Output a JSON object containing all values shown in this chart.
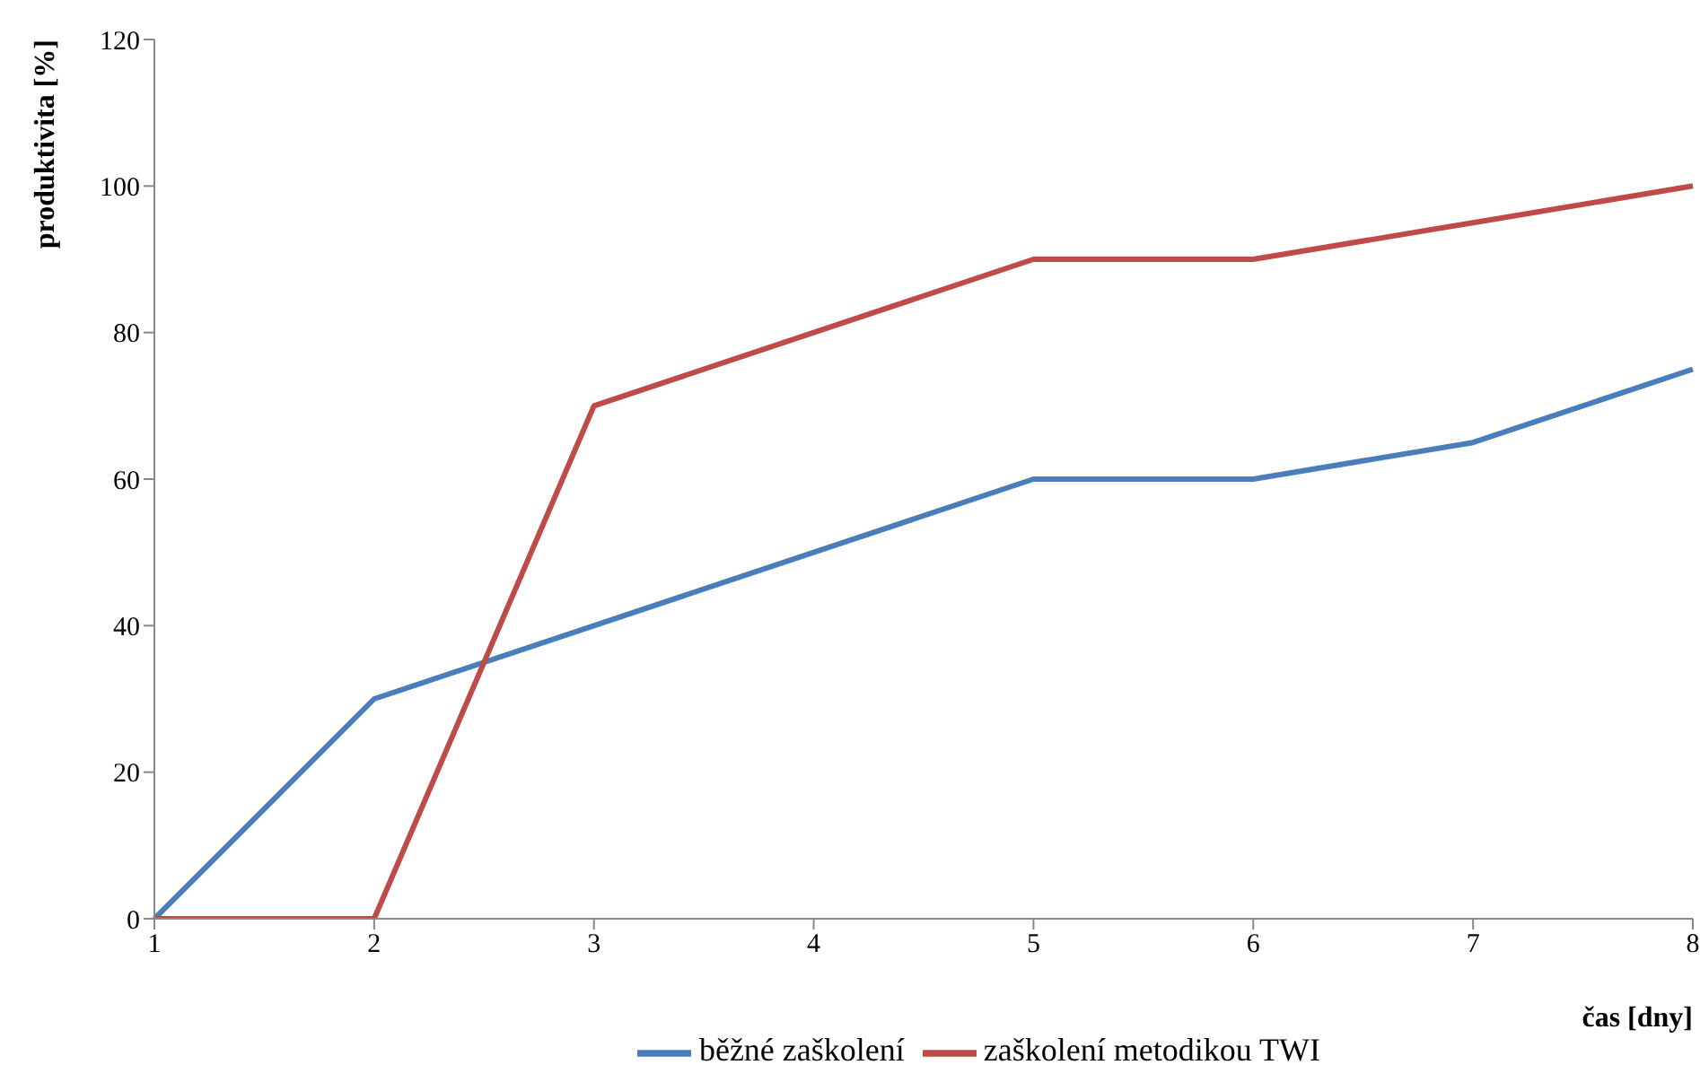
{
  "chart_data": {
    "type": "line",
    "xlabel": "čas [dny]",
    "ylabel": "produktivita [%]",
    "categories": [
      "1",
      "2",
      "3",
      "4",
      "5",
      "6",
      "7",
      "8"
    ],
    "series": [
      {
        "name": "běžné zaškolení",
        "color": "#4a7ebb",
        "values": [
          0,
          30,
          40,
          50,
          60,
          60,
          65,
          75
        ]
      },
      {
        "name": "zaškolení metodikou TWI",
        "color": "#be4b48",
        "values": [
          0,
          0,
          70,
          80,
          90,
          90,
          95,
          100
        ]
      }
    ],
    "ylim": [
      0,
      120
    ],
    "yticks": [
      0,
      20,
      40,
      60,
      80,
      100,
      120
    ],
    "grid": false,
    "legend": "bottom",
    "marker": "none",
    "line_style": "solid"
  }
}
